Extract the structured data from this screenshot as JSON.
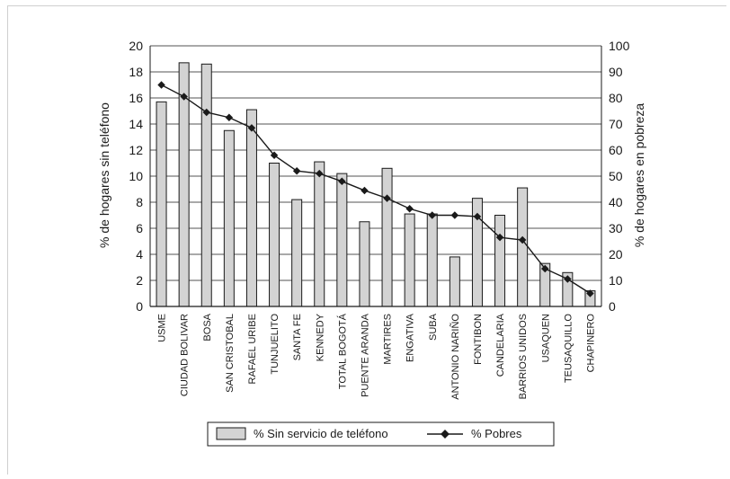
{
  "chart_data": {
    "type": "bar",
    "categories": [
      "USME",
      "CIUDAD BOLIVAR",
      "BOSA",
      "SAN CRISTOBAL",
      "RAFAEL URIBE",
      "TUNJUELITO",
      "SANTA FE",
      "KENNEDY",
      "TOTAL BOGOTÁ",
      "PUENTE ARANDA",
      "MARTIRES",
      "ENGATIVA",
      "SUBA",
      "ANTONIO NARIÑO",
      "FONTIBON",
      "CANDELARIA",
      "BARRIOS UNIDOS",
      "USAQUEN",
      "TEUSAQUILLO",
      "CHAPINERO"
    ],
    "series": [
      {
        "name": "% Sin servicio de teléfono",
        "type": "bar",
        "axis": "left",
        "values": [
          15.7,
          18.7,
          18.6,
          13.5,
          15.1,
          11.0,
          8.2,
          11.1,
          10.2,
          6.5,
          10.6,
          7.1,
          7.1,
          3.8,
          8.3,
          7.0,
          9.1,
          3.3,
          2.6,
          1.2
        ]
      },
      {
        "name": "% Pobres",
        "type": "line",
        "axis": "right",
        "values": [
          85,
          80.5,
          74.5,
          72.5,
          68.5,
          58,
          52,
          51,
          48,
          44.5,
          41.5,
          37.5,
          35,
          35,
          34.5,
          26.5,
          25.5,
          14.5,
          10.5,
          5
        ]
      }
    ],
    "ylabel": "% de hogares sin teléfono",
    "y2label": "% de hogares en pobreza",
    "ylim": [
      0,
      20
    ],
    "y2lim": [
      0,
      100
    ],
    "yticks": [
      "0",
      "2",
      "4",
      "6",
      "8",
      "10",
      "12",
      "14",
      "16",
      "18",
      "20"
    ],
    "y2ticks": [
      "0",
      "10",
      "20",
      "30",
      "40",
      "50",
      "60",
      "70",
      "80",
      "90",
      "100"
    ],
    "grid": "horizontal",
    "legend_position": "bottom",
    "colors": {
      "bar_fill": "#d3d3d3",
      "bar_stroke": "#1a1a1a",
      "line": "#1a1a1a"
    }
  }
}
